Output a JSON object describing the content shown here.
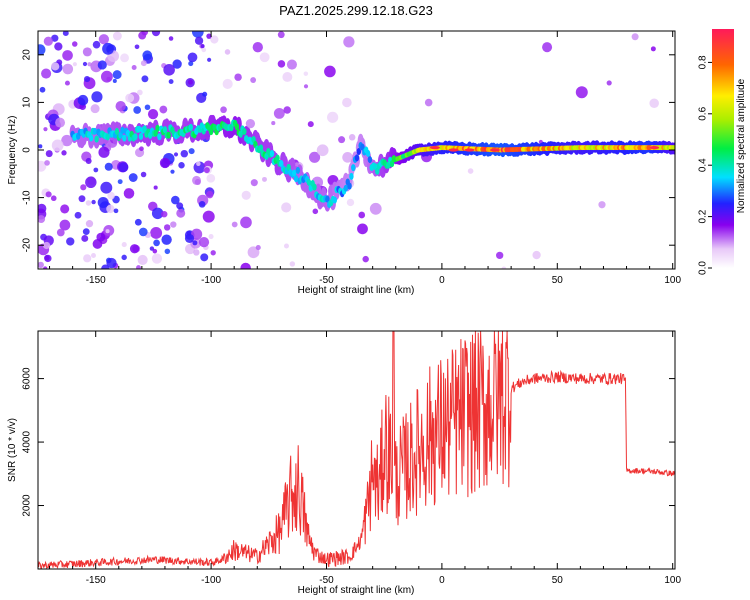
{
  "title": "PAZ1.2025.299.12.18.G23",
  "chart_data": [
    {
      "type": "heatmap",
      "name": "spectrogram",
      "xlabel": "Height of straight line (km)",
      "ylabel": "Frequency (Hz)",
      "xlim": [
        -175,
        101
      ],
      "ylim": [
        -25,
        25
      ],
      "xticks": [
        -150,
        -100,
        -50,
        0,
        50,
        100
      ],
      "yticks": [
        -20,
        -10,
        0,
        10,
        20
      ],
      "colorbar": {
        "label": "Normalized spectral amplitude",
        "range": [
          0,
          0.93
        ],
        "ticks": [
          0.0,
          0.2,
          0.4,
          0.6,
          0.8
        ]
      },
      "ridge": [
        {
          "x": -150,
          "y": 3,
          "amp": 0.35
        },
        {
          "x": -130,
          "y": 3.5,
          "amp": 0.4
        },
        {
          "x": -110,
          "y": 4,
          "amp": 0.4
        },
        {
          "x": -90,
          "y": 5,
          "amp": 0.45
        },
        {
          "x": -80,
          "y": 1,
          "amp": 0.4
        },
        {
          "x": -70,
          "y": -3,
          "amp": 0.4
        },
        {
          "x": -60,
          "y": -6,
          "amp": 0.35
        },
        {
          "x": -50,
          "y": -11,
          "amp": 0.35
        },
        {
          "x": -40,
          "y": -7,
          "amp": 0.3
        },
        {
          "x": -35,
          "y": 2,
          "amp": 0.3
        },
        {
          "x": -30,
          "y": -4,
          "amp": 0.35
        },
        {
          "x": -20,
          "y": -2,
          "amp": 0.45
        },
        {
          "x": -10,
          "y": 0,
          "amp": 0.6
        },
        {
          "x": 0,
          "y": 0.5,
          "amp": 0.7
        },
        {
          "x": 25,
          "y": 0,
          "amp": 0.8
        },
        {
          "x": 60,
          "y": 0.5,
          "amp": 0.65
        },
        {
          "x": 90,
          "y": 0.5,
          "amp": 0.75
        },
        {
          "x": 101,
          "y": 0.5,
          "amp": 0.6
        }
      ]
    },
    {
      "type": "line",
      "name": "snr",
      "xlabel": "Height of straight line (km)",
      "ylabel": "SNR (10 * v/v)",
      "xlim": [
        -175,
        101
      ],
      "ylim": [
        0,
        7500
      ],
      "xticks": [
        -150,
        -100,
        -50,
        0,
        50,
        100
      ],
      "yticks": [
        2000,
        4000,
        6000
      ],
      "color": "#ee3333",
      "x": [
        -175,
        -150,
        -125,
        -100,
        -95,
        -90,
        -80,
        -70,
        -66,
        -62,
        -58,
        -55,
        -50,
        -40,
        -35,
        -32,
        -30,
        -27,
        -25,
        -22,
        -20,
        -15,
        -10,
        -5,
        0,
        5,
        10,
        15,
        20,
        25,
        30,
        35,
        40,
        50,
        60,
        70,
        78,
        79.5,
        80,
        85,
        90,
        95,
        101
      ],
      "y": [
        100,
        200,
        300,
        200,
        300,
        600,
        400,
        1200,
        2200,
        2600,
        1000,
        500,
        300,
        400,
        900,
        2000,
        3000,
        2500,
        4000,
        3500,
        2800,
        3300,
        3800,
        4200,
        4400,
        4600,
        4900,
        5000,
        5200,
        5500,
        5700,
        5900,
        6000,
        6050,
        6000,
        6000,
        6000,
        5950,
        3100,
        3100,
        3080,
        3050,
        3000
      ],
      "spike": {
        "x": -21,
        "y": 7500
      }
    }
  ]
}
